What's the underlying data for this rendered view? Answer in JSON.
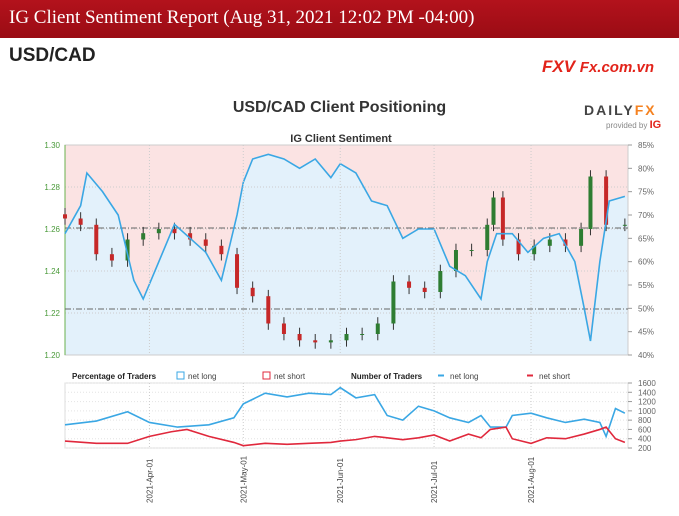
{
  "header": {
    "title": "IG Client Sentiment Report (Aug 31, 2021 12:02 PM -04:00)"
  },
  "pair": "USD/CAD",
  "watermark": {
    "brand": "FXV",
    "site": "Fx.com.vn"
  },
  "dailyfx": {
    "logo_a": "DAILY",
    "logo_b": "FX",
    "provided": "provided by",
    "ig": "IG"
  },
  "chart_data": [
    {
      "type": "line",
      "title": "USD/CAD Client Positioning",
      "subtitle": "IG Client Sentiment",
      "left_axis": {
        "ticks": [
          "1.20",
          "1.22",
          "1.24",
          "1.26",
          "1.28",
          "1.30"
        ],
        "range": [
          1.2,
          1.3
        ]
      },
      "right_axis": {
        "ticks": [
          "40%",
          "45%",
          "50%",
          "55%",
          "60%",
          "65%",
          "70%",
          "75%",
          "80%",
          "85%"
        ],
        "range": [
          40,
          85
        ]
      },
      "reference_levels": [
        1.2219,
        1.2605
      ],
      "price": {
        "dates": [
          "2021-03-05",
          "2021-03-10",
          "2021-03-15",
          "2021-03-20",
          "2021-03-25",
          "2021-03-30",
          "2021-04-04",
          "2021-04-09",
          "2021-04-14",
          "2021-04-19",
          "2021-04-24",
          "2021-04-29",
          "2021-05-04",
          "2021-05-09",
          "2021-05-14",
          "2021-05-19",
          "2021-05-24",
          "2021-05-29",
          "2021-06-03",
          "2021-06-08",
          "2021-06-13",
          "2021-06-18",
          "2021-06-23",
          "2021-06-28",
          "2021-07-03",
          "2021-07-08",
          "2021-07-13",
          "2021-07-18",
          "2021-07-20",
          "2021-07-23",
          "2021-07-28",
          "2021-08-02",
          "2021-08-07",
          "2021-08-12",
          "2021-08-17",
          "2021-08-20",
          "2021-08-25",
          "2021-08-31"
        ],
        "close": [
          1.265,
          1.262,
          1.248,
          1.245,
          1.255,
          1.258,
          1.26,
          1.258,
          1.255,
          1.252,
          1.248,
          1.232,
          1.228,
          1.215,
          1.21,
          1.207,
          1.206,
          1.207,
          1.21,
          1.21,
          1.215,
          1.235,
          1.232,
          1.23,
          1.24,
          1.25,
          1.25,
          1.262,
          1.275,
          1.255,
          1.248,
          1.252,
          1.255,
          1.252,
          1.26,
          1.285,
          1.262,
          1.262
        ]
      },
      "net_long_pct": {
        "dates": [
          "2021-03-05",
          "2021-03-10",
          "2021-03-12",
          "2021-03-17",
          "2021-03-22",
          "2021-03-27",
          "2021-03-30",
          "2021-04-04",
          "2021-04-09",
          "2021-04-14",
          "2021-04-19",
          "2021-04-24",
          "2021-04-29",
          "2021-05-01",
          "2021-05-04",
          "2021-05-09",
          "2021-05-14",
          "2021-05-19",
          "2021-05-24",
          "2021-05-29",
          "2021-06-01",
          "2021-06-06",
          "2021-06-11",
          "2021-06-16",
          "2021-06-21",
          "2021-06-26",
          "2021-07-01",
          "2021-07-06",
          "2021-07-11",
          "2021-07-16",
          "2021-07-18",
          "2021-07-21",
          "2021-07-26",
          "2021-07-31",
          "2021-08-05",
          "2021-08-10",
          "2021-08-15",
          "2021-08-18",
          "2021-08-20",
          "2021-08-23",
          "2021-08-26",
          "2021-08-31"
        ],
        "values": [
          66,
          72,
          79,
          75,
          70,
          56,
          52,
          60,
          68,
          65,
          62,
          56,
          70,
          77,
          82,
          83,
          82,
          80,
          82,
          78,
          81,
          79,
          73,
          72,
          65,
          67,
          67,
          59,
          57,
          52,
          60,
          66,
          66,
          62,
          65,
          66,
          60,
          50,
          43,
          60,
          73,
          74
        ]
      }
    },
    {
      "type": "line",
      "legend": {
        "pct_label": "Percentage of Traders",
        "pct_long": "net long",
        "pct_short": "net short",
        "num_label": "Number of Traders",
        "num_long": "net long",
        "num_short": "net short"
      },
      "right_axis": {
        "ticks": [
          "200",
          "400",
          "600",
          "800",
          "1000",
          "1200",
          "1400",
          "1600"
        ],
        "range": [
          200,
          1600
        ]
      },
      "x_ticks": [
        "2021-Apr-01",
        "2021-May-01",
        "2021-Jun-01",
        "2021-Jul-01",
        "2021-Aug-01"
      ],
      "x_tick_dates": [
        "2021-04-01",
        "2021-05-01",
        "2021-06-01",
        "2021-07-01",
        "2021-08-01"
      ],
      "x_range": [
        "2021-03-05",
        "2021-09-01"
      ],
      "series": [
        {
          "name": "net long",
          "color": "#3aa7e4",
          "dates": [
            "2021-03-05",
            "2021-03-15",
            "2021-03-25",
            "2021-04-01",
            "2021-04-10",
            "2021-04-20",
            "2021-04-28",
            "2021-05-01",
            "2021-05-08",
            "2021-05-15",
            "2021-05-22",
            "2021-05-29",
            "2021-06-01",
            "2021-06-06",
            "2021-06-12",
            "2021-06-16",
            "2021-06-21",
            "2021-06-26",
            "2021-07-01",
            "2021-07-06",
            "2021-07-12",
            "2021-07-16",
            "2021-07-19",
            "2021-07-24",
            "2021-07-26",
            "2021-08-01",
            "2021-08-06",
            "2021-08-12",
            "2021-08-18",
            "2021-08-23",
            "2021-08-25",
            "2021-08-28",
            "2021-08-31"
          ],
          "values": [
            700,
            780,
            980,
            750,
            650,
            700,
            850,
            1150,
            1380,
            1300,
            1380,
            1350,
            1500,
            1280,
            1350,
            900,
            800,
            1100,
            1000,
            850,
            750,
            900,
            650,
            650,
            900,
            950,
            850,
            750,
            820,
            750,
            450,
            1050,
            950
          ]
        },
        {
          "name": "net short",
          "color": "#e0283c",
          "dates": [
            "2021-03-05",
            "2021-03-15",
            "2021-03-25",
            "2021-04-01",
            "2021-04-08",
            "2021-04-13",
            "2021-04-20",
            "2021-04-28",
            "2021-05-01",
            "2021-05-08",
            "2021-05-15",
            "2021-05-22",
            "2021-05-29",
            "2021-06-01",
            "2021-06-06",
            "2021-06-12",
            "2021-06-16",
            "2021-06-21",
            "2021-06-26",
            "2021-07-01",
            "2021-07-06",
            "2021-07-12",
            "2021-07-16",
            "2021-07-19",
            "2021-07-24",
            "2021-07-26",
            "2021-08-01",
            "2021-08-06",
            "2021-08-12",
            "2021-08-18",
            "2021-08-23",
            "2021-08-25",
            "2021-08-28",
            "2021-08-31"
          ],
          "values": [
            350,
            300,
            300,
            450,
            550,
            600,
            450,
            320,
            250,
            300,
            280,
            300,
            320,
            350,
            380,
            450,
            420,
            380,
            420,
            480,
            350,
            500,
            420,
            600,
            650,
            400,
            300,
            420,
            400,
            500,
            600,
            650,
            400,
            320
          ]
        }
      ]
    }
  ]
}
